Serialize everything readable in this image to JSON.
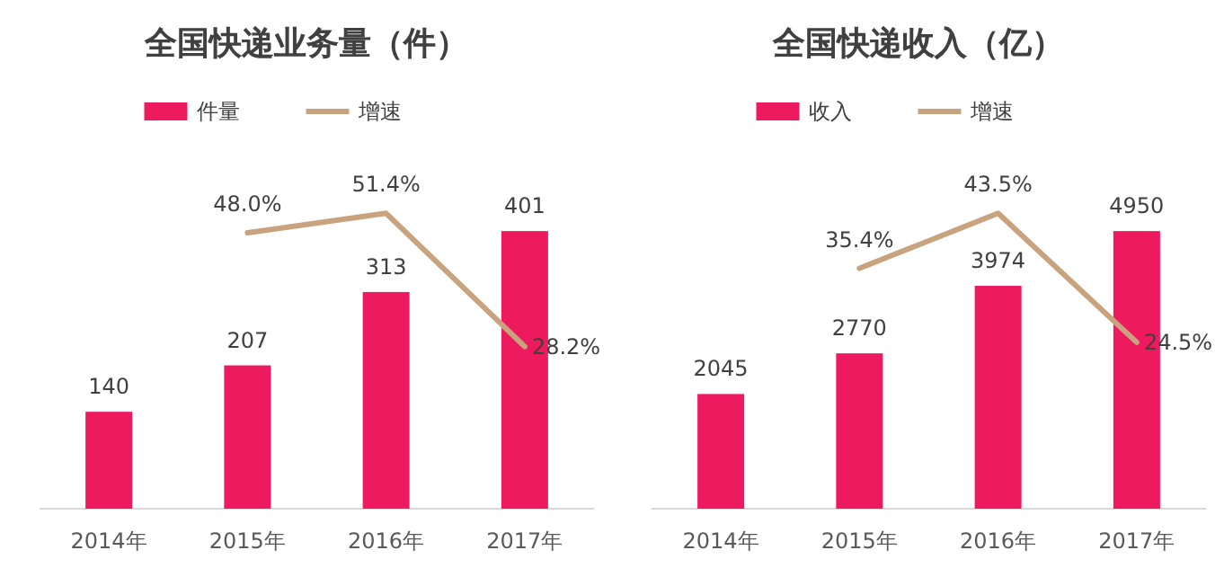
{
  "chart_data": [
    {
      "type": "bar",
      "title": "全国快递业务量（件）",
      "categories": [
        "2014年",
        "2015年",
        "2016年",
        "2017年"
      ],
      "legend": "top",
      "series": [
        {
          "name": "件量",
          "type": "bar",
          "color": "#ee1a5f",
          "values": [
            140,
            207,
            313,
            401
          ],
          "value_labels": [
            "140",
            "207",
            "313",
            "401"
          ]
        },
        {
          "name": "增速",
          "type": "line",
          "axis": "y2",
          "color": "#c9a27e",
          "values": [
            null,
            48.0,
            51.4,
            28.2
          ],
          "value_labels": [
            null,
            "48.0%",
            "51.4%",
            "28.2%"
          ]
        }
      ]
    },
    {
      "type": "bar",
      "title": "全国快递收入（亿）",
      "categories": [
        "2014年",
        "2015年",
        "2016年",
        "2017年"
      ],
      "legend": "top",
      "series": [
        {
          "name": "收入",
          "type": "bar",
          "color": "#ee1a5f",
          "values": [
            2045,
            2770,
            3974,
            4950
          ],
          "value_labels": [
            "2045",
            "2770",
            "3974",
            "4950"
          ]
        },
        {
          "name": "增速",
          "type": "line",
          "axis": "y2",
          "color": "#c9a27e",
          "values": [
            null,
            35.4,
            43.5,
            24.5
          ],
          "value_labels": [
            null,
            "35.4%",
            "43.5%",
            "24.5%"
          ]
        }
      ]
    }
  ]
}
